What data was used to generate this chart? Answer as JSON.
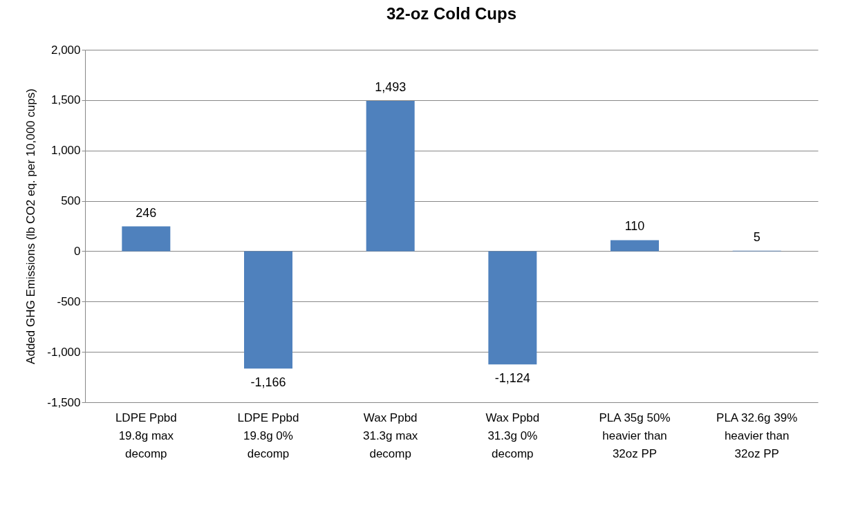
{
  "chart_data": {
    "type": "bar",
    "title": "32-oz Cold Cups",
    "ylabel": "Added GHG Emissions (lb CO2 eq. per 10,000 cups)",
    "categories": [
      "LDPE Ppbd 19.8g max decomp",
      "LDPE Ppbd 19.8g 0% decomp",
      "Wax Ppbd 31.3g max decomp",
      "Wax Ppbd 31.3g 0% decomp",
      "PLA 35g 50% heavier than 32oz PP",
      "PLA 32.6g 39% heavier than 32oz PP"
    ],
    "values": [
      246,
      -1166,
      1493,
      -1124,
      110,
      5
    ],
    "value_labels": [
      "246",
      "-1,166",
      "1,493",
      "-1,124",
      "110",
      "5"
    ],
    "color": "#4f81bd",
    "ylim": [
      -1500,
      2000
    ],
    "yticks": [
      {
        "value": -1500,
        "label": "-1,500"
      },
      {
        "value": -1000,
        "label": "-1,000"
      },
      {
        "value": -500,
        "label": "-500"
      },
      0,
      500,
      {
        "value": 1000,
        "label": "1,000"
      },
      {
        "value": 1500,
        "label": "1,500"
      },
      {
        "value": 2000,
        "label": "2,000"
      }
    ],
    "grid": "y"
  }
}
